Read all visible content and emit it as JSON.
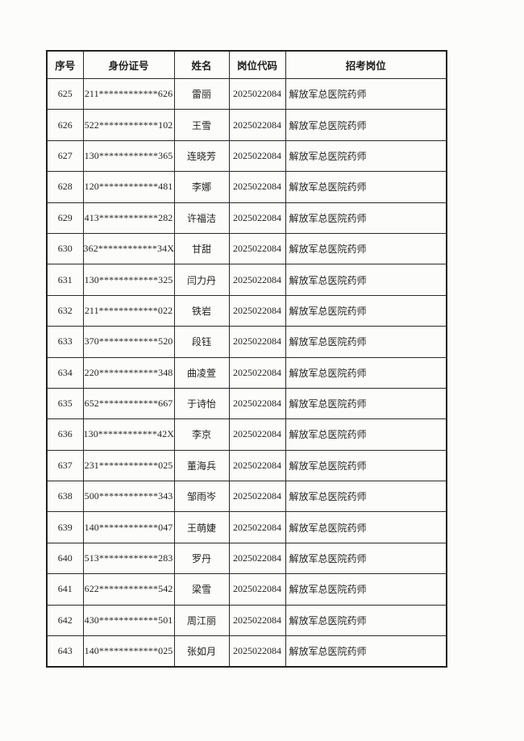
{
  "table": {
    "headers": [
      "序号",
      "身份证号",
      "姓名",
      "岗位代码",
      "招考岗位"
    ],
    "rows": [
      [
        "625",
        "211************626",
        "雷丽",
        "2025022084",
        "解放军总医院药师"
      ],
      [
        "626",
        "522************102",
        "王雪",
        "2025022084",
        "解放军总医院药师"
      ],
      [
        "627",
        "130************365",
        "连晓芳",
        "2025022084",
        "解放军总医院药师"
      ],
      [
        "628",
        "120************481",
        "李娜",
        "2025022084",
        "解放军总医院药师"
      ],
      [
        "629",
        "413************282",
        "许福洁",
        "2025022084",
        "解放军总医院药师"
      ],
      [
        "630",
        "362************34X",
        "甘甜",
        "2025022084",
        "解放军总医院药师"
      ],
      [
        "631",
        "130************325",
        "闫力丹",
        "2025022084",
        "解放军总医院药师"
      ],
      [
        "632",
        "211************022",
        "铁岩",
        "2025022084",
        "解放军总医院药师"
      ],
      [
        "633",
        "370************520",
        "段钰",
        "2025022084",
        "解放军总医院药师"
      ],
      [
        "634",
        "220************348",
        "曲凌萱",
        "2025022084",
        "解放军总医院药师"
      ],
      [
        "635",
        "652************667",
        "于诗怡",
        "2025022084",
        "解放军总医院药师"
      ],
      [
        "636",
        "130************42X",
        "李京",
        "2025022084",
        "解放军总医院药师"
      ],
      [
        "637",
        "231************025",
        "董海兵",
        "2025022084",
        "解放军总医院药师"
      ],
      [
        "638",
        "500************343",
        "邹雨岑",
        "2025022084",
        "解放军总医院药师"
      ],
      [
        "639",
        "140************047",
        "王萌婕",
        "2025022084",
        "解放军总医院药师"
      ],
      [
        "640",
        "513************283",
        "罗丹",
        "2025022084",
        "解放军总医院药师"
      ],
      [
        "641",
        "622************542",
        "梁雪",
        "2025022084",
        "解放军总医院药师"
      ],
      [
        "642",
        "430************501",
        "周江丽",
        "2025022084",
        "解放军总医院药师"
      ],
      [
        "643",
        "140************025",
        "张如月",
        "2025022084",
        "解放军总医院药师"
      ]
    ],
    "column_semantics": [
      "serial",
      "id-number",
      "name",
      "job-code",
      "job-title"
    ],
    "colors": {
      "paper": "#fcfcfa",
      "ink": "#1f1f1f",
      "border": "#2a2a2a"
    }
  }
}
